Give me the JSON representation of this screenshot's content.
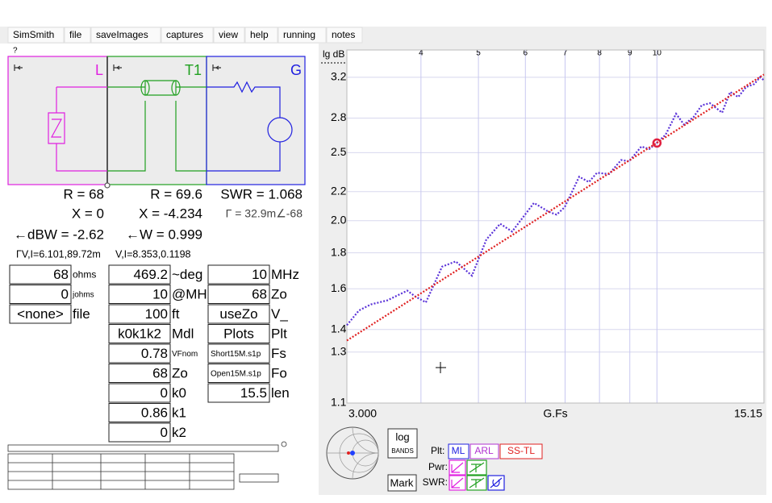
{
  "menu": [
    "SimSmith",
    "file",
    "saveImages",
    "captures",
    "view",
    "help",
    "running",
    "notes"
  ],
  "help_mark": "?",
  "schematic": {
    "blocks": [
      "L",
      "T1",
      "G"
    ]
  },
  "readouts": [
    [
      "R = 68",
      "R = 69.6",
      "SWR = 1.068"
    ],
    [
      "X = 0",
      "X = -4.234",
      "Γ = 32.9m∠-68"
    ],
    [
      "←dBW = -2.62",
      "←W = 0.999"
    ],
    [
      "ΓV,I=6.101,89.72m",
      "V,I=8.353,0.1198"
    ]
  ],
  "inputs": [
    [
      [
        "68",
        "ohms"
      ],
      [
        "0",
        "johms"
      ],
      [
        "<none>",
        "file"
      ]
    ],
    [
      [
        "469.2",
        "~deg"
      ],
      [
        "10",
        "@MHz"
      ],
      [
        "100",
        "ft"
      ],
      [
        "k0k1k2",
        "Mdl"
      ],
      [
        "0.78",
        "VFnom"
      ],
      [
        "68",
        "Zo"
      ],
      [
        "0",
        "k0"
      ],
      [
        "0.86",
        "k1"
      ],
      [
        "0",
        "k2"
      ]
    ],
    [
      [
        "10",
        "MHz"
      ],
      [
        "68",
        "Zo"
      ],
      [
        "useZo",
        "V_"
      ],
      [
        "Plots",
        "Plt"
      ],
      [
        "Short15M.s1p",
        "Fs"
      ],
      [
        "Open15M.s1p",
        "Fo"
      ],
      [
        "15.5",
        "len"
      ]
    ]
  ],
  "plot": {
    "type": "line",
    "y_label": "lg dB",
    "x_label": "G.Fs",
    "log_x": true,
    "log_y": true,
    "xlim": [
      3,
      15.15
    ],
    "x_end_labels": [
      {
        "value": 3,
        "label": "3.000"
      },
      {
        "value": 15.15,
        "label": "15.15"
      }
    ],
    "xticks": [
      4,
      5,
      6,
      7,
      8,
      9,
      10
    ],
    "ylim": [
      1.1,
      3.5
    ],
    "yticks": [
      1.1,
      1.3,
      1.4,
      1.6,
      1.8,
      {
        "value": 2,
        "label": "2.0"
      },
      2.2,
      2.5,
      2.8,
      3.2
    ],
    "grid": true,
    "series": [
      {
        "name": "ML",
        "color": "#5a32d8",
        "x": [
          3.0,
          3.144,
          3.294,
          3.508,
          3.793,
          3.913,
          4.077,
          4.341,
          4.579,
          4.875,
          5.156,
          5.44,
          5.699,
          6.203,
          6.563,
          6.772,
          6.988,
          7.394,
          7.678,
          7.922,
          8.303,
          8.702,
          8.979,
          9.41,
          9.71,
          9.986,
          10.34,
          10.77,
          11.11,
          11.53,
          11.9,
          12.28,
          12.88,
          13.29,
          13.71,
          14.14,
          14.59,
          14.92,
          15.15
        ],
        "values": [
          1.42,
          1.49,
          1.52,
          1.54,
          1.59,
          1.56,
          1.53,
          1.72,
          1.75,
          1.67,
          1.88,
          1.98,
          1.93,
          2.12,
          2.06,
          2.04,
          2.09,
          2.31,
          2.27,
          2.34,
          2.33,
          2.44,
          2.43,
          2.55,
          2.53,
          2.58,
          2.65,
          2.84,
          2.74,
          2.81,
          2.92,
          2.94,
          2.85,
          3.05,
          3.0,
          3.1,
          3.13,
          3.2,
          3.17
        ]
      },
      {
        "name": "SS-TL",
        "color": "#e02020",
        "x": [
          3.0,
          15.15
        ],
        "values": [
          1.35,
          3.23
        ]
      }
    ],
    "marker": {
      "x": 10,
      "y": 2.58
    }
  },
  "plot_controls": {
    "log": "log",
    "bands": "BANDS",
    "mark": "Mark",
    "plt_label": "Plt:",
    "arl": "ARL",
    "pwr_label": "Pwr:",
    "swr_label": "SWR:"
  }
}
